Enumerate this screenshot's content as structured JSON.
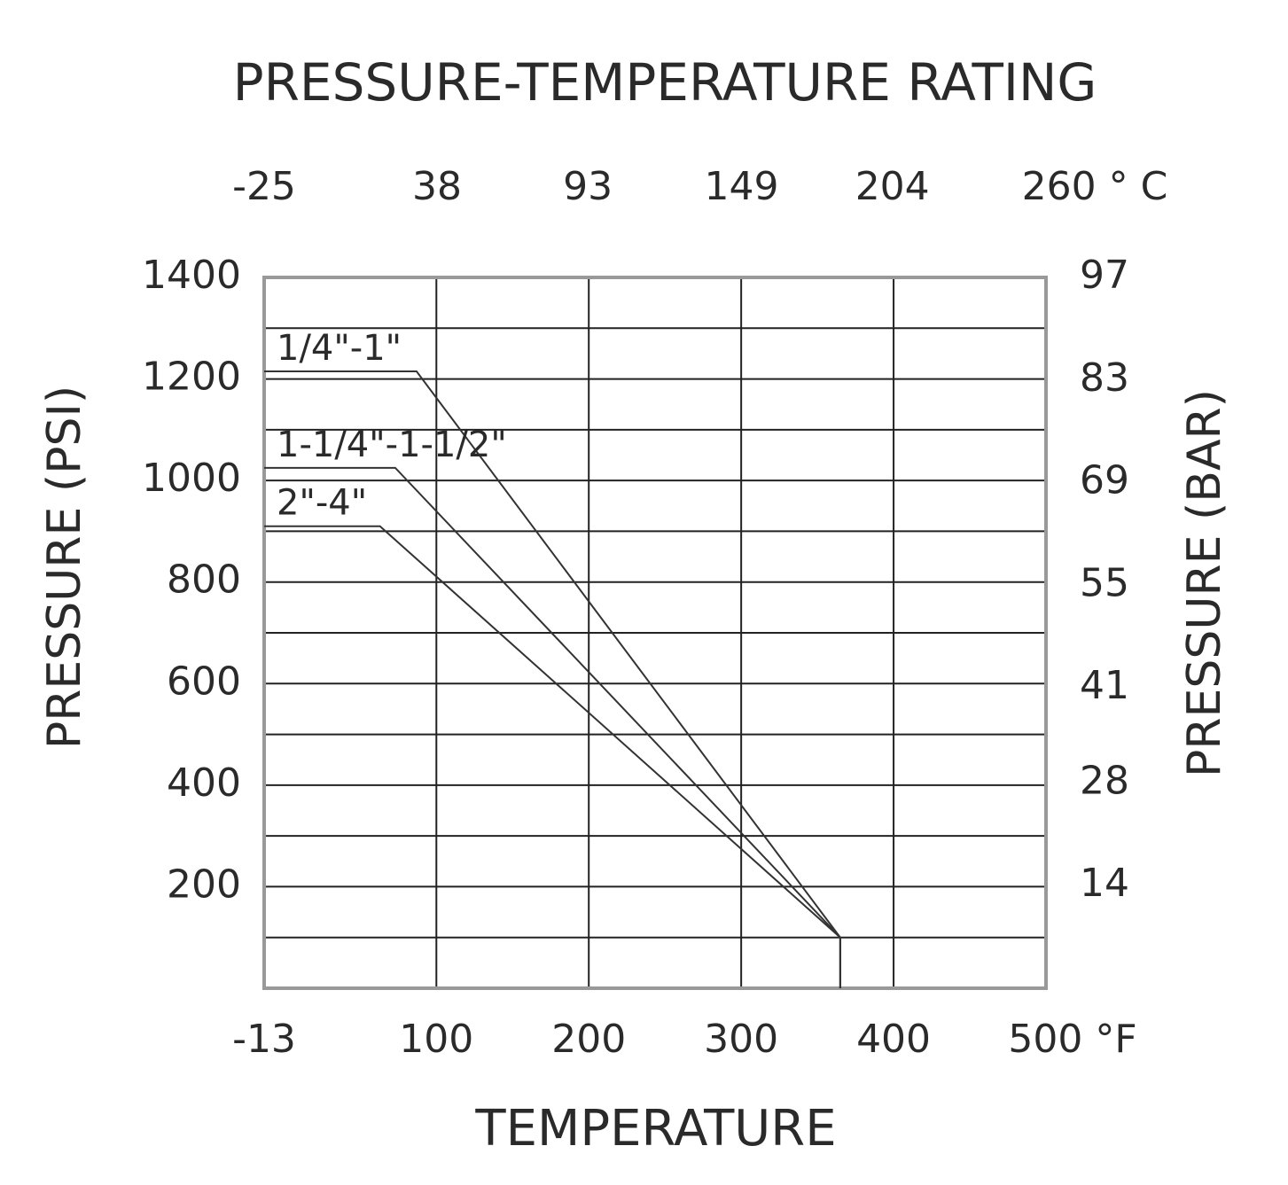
{
  "chart_data": {
    "type": "line",
    "title": "PRESSURE-TEMPERATURE RATING",
    "x_label": "TEMPERATURE",
    "y_label": "PRESSURE (PSI)",
    "y2_label": "PRESSURE (BAR)",
    "xlim": [
      -13,
      500
    ],
    "xticks": [
      -13,
      100,
      200,
      300,
      400,
      {
        "value": 500,
        "label": "500 °F"
      }
    ],
    "x2lim": [
      -25,
      260
    ],
    "x2ticks": [
      -25,
      38,
      93,
      149,
      204,
      {
        "value": 260,
        "label": "260 ° C"
      }
    ],
    "ylim": [
      0,
      1400
    ],
    "yticks": [
      200,
      400,
      600,
      800,
      1000,
      1200,
      1400
    ],
    "yminorticks": [
      100,
      300,
      500,
      700,
      900,
      1100,
      1300
    ],
    "y2lim": [
      0,
      97
    ],
    "y2ticks": [
      14,
      28,
      41,
      55,
      69,
      83,
      97
    ],
    "grid": true,
    "series": [
      {
        "name": "1/4\"-1\"",
        "color": "#333333",
        "x": [
          -13,
          87,
          365,
          365
        ],
        "y": [
          1215,
          1215,
          100,
          0
        ]
      },
      {
        "name": "1-1/4\"-1-1/2\"",
        "color": "#333333",
        "x": [
          -13,
          73,
          365,
          365
        ],
        "y": [
          1025,
          1025,
          100,
          0
        ]
      },
      {
        "name": "2\"-4\"",
        "color": "#333333",
        "x": [
          -13,
          63,
          365,
          365
        ],
        "y": [
          910,
          910,
          100,
          0
        ]
      }
    ]
  }
}
